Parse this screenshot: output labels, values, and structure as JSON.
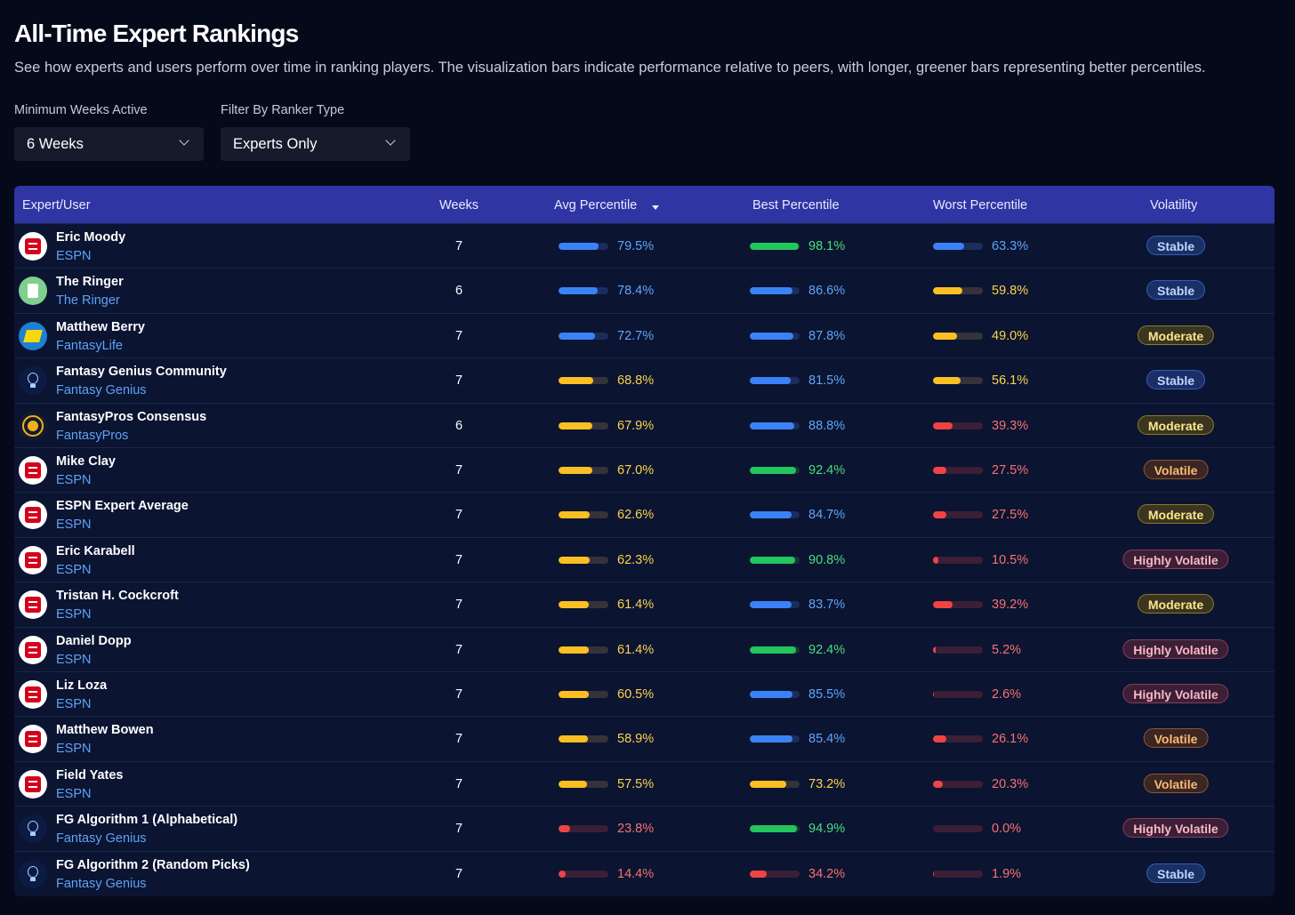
{
  "header": {
    "title": "All-Time Expert Rankings",
    "subtitle": "See how experts and users perform over time in ranking players. The visualization bars indicate performance relative to peers, with longer, greener bars representing better percentiles."
  },
  "filters": [
    {
      "label": "Minimum Weeks Active",
      "value": "6 Weeks"
    },
    {
      "label": "Filter By Ranker Type",
      "value": "Experts Only"
    }
  ],
  "table": {
    "columns": [
      "Expert/User",
      "Weeks",
      "Avg Percentile",
      "Best Percentile",
      "Worst Percentile",
      "Volatility"
    ],
    "rows": [
      {
        "name": "Eric Moody",
        "source": "ESPN",
        "weeks": 7,
        "avg": {
          "value": 79.5,
          "label": "79.5%",
          "tone": "blue"
        },
        "best": {
          "value": 98.1,
          "label": "98.1%",
          "tone": "green"
        },
        "worst": {
          "value": 63.3,
          "label": "63.3%",
          "tone": "blue"
        },
        "volatility": {
          "label": "Stable",
          "tone": "blue"
        }
      },
      {
        "name": "The Ringer",
        "source": "The Ringer",
        "weeks": 6,
        "avg": {
          "value": 78.4,
          "label": "78.4%",
          "tone": "blue"
        },
        "best": {
          "value": 86.6,
          "label": "86.6%",
          "tone": "blue"
        },
        "worst": {
          "value": 59.8,
          "label": "59.8%",
          "tone": "yellow"
        },
        "volatility": {
          "label": "Stable",
          "tone": "blue"
        }
      },
      {
        "name": "Matthew Berry",
        "source": "FantasyLife",
        "weeks": 7,
        "avg": {
          "value": 72.7,
          "label": "72.7%",
          "tone": "blue"
        },
        "best": {
          "value": 87.8,
          "label": "87.8%",
          "tone": "blue"
        },
        "worst": {
          "value": 49.0,
          "label": "49.0%",
          "tone": "yellow"
        },
        "volatility": {
          "label": "Moderate",
          "tone": "yellow"
        }
      },
      {
        "name": "Fantasy Genius Community",
        "source": "Fantasy Genius",
        "weeks": 7,
        "avg": {
          "value": 68.8,
          "label": "68.8%",
          "tone": "yellow"
        },
        "best": {
          "value": 81.5,
          "label": "81.5%",
          "tone": "blue"
        },
        "worst": {
          "value": 56.1,
          "label": "56.1%",
          "tone": "yellow"
        },
        "volatility": {
          "label": "Stable",
          "tone": "blue"
        }
      },
      {
        "name": "FantasyPros Consensus",
        "source": "FantasyPros",
        "weeks": 6,
        "avg": {
          "value": 67.9,
          "label": "67.9%",
          "tone": "yellow"
        },
        "best": {
          "value": 88.8,
          "label": "88.8%",
          "tone": "blue"
        },
        "worst": {
          "value": 39.3,
          "label": "39.3%",
          "tone": "red"
        },
        "volatility": {
          "label": "Moderate",
          "tone": "yellow"
        }
      },
      {
        "name": "Mike Clay",
        "source": "ESPN",
        "weeks": 7,
        "avg": {
          "value": 67.0,
          "label": "67.0%",
          "tone": "yellow"
        },
        "best": {
          "value": 92.4,
          "label": "92.4%",
          "tone": "green"
        },
        "worst": {
          "value": 27.5,
          "label": "27.5%",
          "tone": "red"
        },
        "volatility": {
          "label": "Volatile",
          "tone": "orange"
        }
      },
      {
        "name": "ESPN Expert Average",
        "source": "ESPN",
        "weeks": 7,
        "avg": {
          "value": 62.6,
          "label": "62.6%",
          "tone": "yellow"
        },
        "best": {
          "value": 84.7,
          "label": "84.7%",
          "tone": "blue"
        },
        "worst": {
          "value": 27.5,
          "label": "27.5%",
          "tone": "red"
        },
        "volatility": {
          "label": "Moderate",
          "tone": "yellow"
        }
      },
      {
        "name": "Eric Karabell",
        "source": "ESPN",
        "weeks": 7,
        "avg": {
          "value": 62.3,
          "label": "62.3%",
          "tone": "yellow"
        },
        "best": {
          "value": 90.8,
          "label": "90.8%",
          "tone": "green"
        },
        "worst": {
          "value": 10.5,
          "label": "10.5%",
          "tone": "red"
        },
        "volatility": {
          "label": "Highly Volatile",
          "tone": "pink"
        }
      },
      {
        "name": "Tristan H. Cockcroft",
        "source": "ESPN",
        "weeks": 7,
        "avg": {
          "value": 61.4,
          "label": "61.4%",
          "tone": "yellow"
        },
        "best": {
          "value": 83.7,
          "label": "83.7%",
          "tone": "blue"
        },
        "worst": {
          "value": 39.2,
          "label": "39.2%",
          "tone": "red"
        },
        "volatility": {
          "label": "Moderate",
          "tone": "yellow"
        }
      },
      {
        "name": "Daniel Dopp",
        "source": "ESPN",
        "weeks": 7,
        "avg": {
          "value": 61.4,
          "label": "61.4%",
          "tone": "yellow"
        },
        "best": {
          "value": 92.4,
          "label": "92.4%",
          "tone": "green"
        },
        "worst": {
          "value": 5.2,
          "label": "5.2%",
          "tone": "red"
        },
        "volatility": {
          "label": "Highly Volatile",
          "tone": "pink"
        }
      },
      {
        "name": "Liz Loza",
        "source": "ESPN",
        "weeks": 7,
        "avg": {
          "value": 60.5,
          "label": "60.5%",
          "tone": "yellow"
        },
        "best": {
          "value": 85.5,
          "label": "85.5%",
          "tone": "blue"
        },
        "worst": {
          "value": 2.6,
          "label": "2.6%",
          "tone": "red"
        },
        "volatility": {
          "label": "Highly Volatile",
          "tone": "pink"
        }
      },
      {
        "name": "Matthew Bowen",
        "source": "ESPN",
        "weeks": 7,
        "avg": {
          "value": 58.9,
          "label": "58.9%",
          "tone": "yellow"
        },
        "best": {
          "value": 85.4,
          "label": "85.4%",
          "tone": "blue"
        },
        "worst": {
          "value": 26.1,
          "label": "26.1%",
          "tone": "red"
        },
        "volatility": {
          "label": "Volatile",
          "tone": "orange"
        }
      },
      {
        "name": "Field Yates",
        "source": "ESPN",
        "weeks": 7,
        "avg": {
          "value": 57.5,
          "label": "57.5%",
          "tone": "yellow"
        },
        "best": {
          "value": 73.2,
          "label": "73.2%",
          "tone": "yellow"
        },
        "worst": {
          "value": 20.3,
          "label": "20.3%",
          "tone": "red"
        },
        "volatility": {
          "label": "Volatile",
          "tone": "orange"
        }
      },
      {
        "name": "FG Algorithm 1 (Alphabetical)",
        "source": "Fantasy Genius",
        "weeks": 7,
        "avg": {
          "value": 23.8,
          "label": "23.8%",
          "tone": "red"
        },
        "best": {
          "value": 94.9,
          "label": "94.9%",
          "tone": "green"
        },
        "worst": {
          "value": 0.0,
          "label": "0.0%",
          "tone": "red"
        },
        "volatility": {
          "label": "Highly Volatile",
          "tone": "pink"
        }
      },
      {
        "name": "FG Algorithm 2 (Random Picks)",
        "source": "Fantasy Genius",
        "weeks": 7,
        "avg": {
          "value": 14.4,
          "label": "14.4%",
          "tone": "red"
        },
        "best": {
          "value": 34.2,
          "label": "34.2%",
          "tone": "red"
        },
        "worst": {
          "value": 1.9,
          "label": "1.9%",
          "tone": "red"
        },
        "volatility": {
          "label": "Stable",
          "tone": "blue"
        }
      }
    ]
  }
}
